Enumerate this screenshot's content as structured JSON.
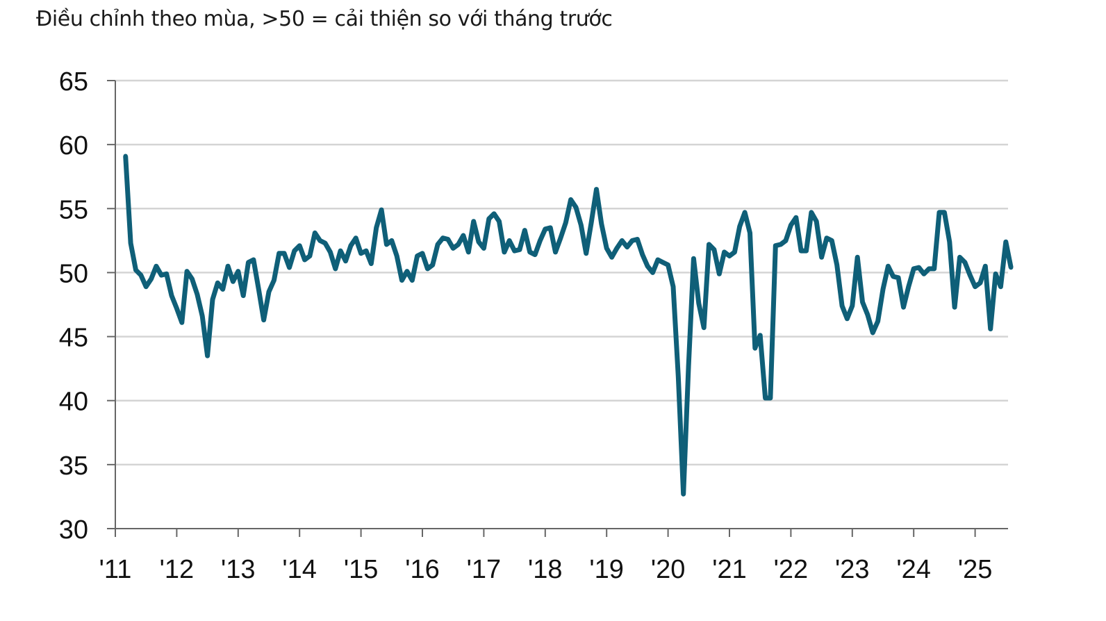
{
  "chart_data": {
    "type": "line",
    "subtitle": "Điều chỉnh theo mùa, >50 = cải thiện so với tháng trước",
    "title": "",
    "xlabel": "",
    "ylabel": "",
    "ylim": [
      30,
      65
    ],
    "y_ticks": [
      "30",
      "35",
      "40",
      "45",
      "50",
      "55",
      "60",
      "65"
    ],
    "x_ticks": [
      "'11",
      "'12",
      "'13",
      "'14",
      "'15",
      "'16",
      "'17",
      "'18",
      "'19",
      "'20",
      "'21",
      "'22",
      "'23",
      "'24",
      "'25"
    ],
    "x_range": [
      "2011-01",
      "2025-07"
    ],
    "grid": true,
    "colors": {
      "line": "#0f5f78",
      "grid": "#d4d4d4",
      "axis": "#666666"
    },
    "series": [
      {
        "name": "",
        "x": [
          "2011-03",
          "2011-04",
          "2011-05",
          "2011-06",
          "2011-07",
          "2011-08",
          "2011-09",
          "2011-10",
          "2011-11",
          "2011-12",
          "2012-01",
          "2012-02",
          "2012-03",
          "2012-04",
          "2012-05",
          "2012-06",
          "2012-07",
          "2012-08",
          "2012-09",
          "2012-10",
          "2012-11",
          "2012-12",
          "2013-01",
          "2013-02",
          "2013-03",
          "2013-04",
          "2013-05",
          "2013-06",
          "2013-07",
          "2013-08",
          "2013-09",
          "2013-10",
          "2013-11",
          "2013-12",
          "2014-01",
          "2014-02",
          "2014-03",
          "2014-04",
          "2014-05",
          "2014-06",
          "2014-07",
          "2014-08",
          "2014-09",
          "2014-10",
          "2014-11",
          "2014-12",
          "2015-01",
          "2015-02",
          "2015-03",
          "2015-04",
          "2015-05",
          "2015-06",
          "2015-07",
          "2015-08",
          "2015-09",
          "2015-10",
          "2015-11",
          "2015-12",
          "2016-01",
          "2016-02",
          "2016-03",
          "2016-04",
          "2016-05",
          "2016-06",
          "2016-07",
          "2016-08",
          "2016-09",
          "2016-10",
          "2016-11",
          "2016-12",
          "2017-01",
          "2017-02",
          "2017-03",
          "2017-04",
          "2017-05",
          "2017-06",
          "2017-07",
          "2017-08",
          "2017-09",
          "2017-10",
          "2017-11",
          "2017-12",
          "2018-01",
          "2018-02",
          "2018-03",
          "2018-04",
          "2018-05",
          "2018-06",
          "2018-07",
          "2018-08",
          "2018-09",
          "2018-10",
          "2018-11",
          "2018-12",
          "2019-01",
          "2019-02",
          "2019-03",
          "2019-04",
          "2019-05",
          "2019-06",
          "2019-07",
          "2019-08",
          "2019-09",
          "2019-10",
          "2019-11",
          "2019-12",
          "2020-01",
          "2020-02",
          "2020-03",
          "2020-04",
          "2020-05",
          "2020-06",
          "2020-07",
          "2020-08",
          "2020-09",
          "2020-10",
          "2020-11",
          "2020-12",
          "2021-01",
          "2021-02",
          "2021-03",
          "2021-04",
          "2021-05",
          "2021-06",
          "2021-07",
          "2021-08",
          "2021-09",
          "2021-10",
          "2021-11",
          "2021-12",
          "2022-01",
          "2022-02",
          "2022-03",
          "2022-04",
          "2022-05",
          "2022-06",
          "2022-07",
          "2022-08",
          "2022-09",
          "2022-10",
          "2022-11",
          "2022-12",
          "2023-01",
          "2023-02",
          "2023-03",
          "2023-04",
          "2023-05",
          "2023-06",
          "2023-07",
          "2023-08",
          "2023-09",
          "2023-10",
          "2023-11",
          "2023-12",
          "2024-01",
          "2024-02",
          "2024-03",
          "2024-04",
          "2024-05",
          "2024-06",
          "2024-07",
          "2024-08",
          "2024-09",
          "2024-10",
          "2024-11",
          "2024-12",
          "2025-01",
          "2025-02",
          "2025-03",
          "2025-04",
          "2025-05",
          "2025-06",
          "2025-07",
          "2025-08"
        ],
        "values": [
          59.1,
          52.3,
          50.2,
          49.8,
          48.9,
          49.5,
          50.5,
          49.8,
          49.9,
          48.2,
          47.2,
          46.1,
          50.1,
          49.5,
          48.3,
          46.6,
          43.5,
          47.9,
          49.2,
          48.7,
          50.5,
          49.3,
          50.1,
          48.2,
          50.8,
          51.0,
          48.7,
          46.3,
          48.5,
          49.4,
          51.5,
          51.5,
          50.4,
          51.7,
          52.1,
          51.0,
          51.3,
          53.1,
          52.5,
          52.3,
          51.6,
          50.3,
          51.7,
          50.9,
          52.1,
          52.7,
          51.5,
          51.7,
          50.7,
          53.5,
          54.9,
          52.2,
          52.5,
          51.3,
          49.4,
          50.1,
          49.4,
          51.3,
          51.5,
          50.3,
          50.6,
          52.2,
          52.7,
          52.6,
          51.9,
          52.2,
          52.9,
          51.6,
          54.0,
          52.4,
          51.9,
          54.2,
          54.6,
          54.0,
          51.6,
          52.5,
          51.7,
          51.8,
          53.3,
          51.6,
          51.4,
          52.5,
          53.4,
          53.5,
          51.6,
          52.7,
          53.9,
          55.7,
          55.1,
          53.7,
          51.5,
          53.9,
          56.5,
          53.8,
          51.9,
          51.2,
          51.9,
          52.5,
          52.0,
          52.5,
          52.6,
          51.4,
          50.5,
          50.0,
          51.0,
          50.8,
          50.6,
          48.9,
          41.9,
          32.7,
          42.7,
          51.1,
          47.6,
          45.7,
          52.2,
          51.8,
          49.9,
          51.6,
          51.3,
          51.6,
          53.6,
          54.7,
          53.1,
          44.1,
          45.1,
          40.2,
          40.2,
          52.1,
          52.2,
          52.5,
          53.7,
          54.3,
          51.7,
          51.7,
          54.7,
          54.0,
          51.2,
          52.7,
          52.5,
          50.6,
          47.4,
          46.4,
          47.4,
          51.2,
          47.7,
          46.7,
          45.3,
          46.2,
          48.7,
          50.5,
          49.7,
          49.6,
          47.3,
          48.9,
          50.3,
          50.4,
          49.9,
          50.3,
          50.3,
          54.7,
          54.7,
          52.4,
          47.3,
          51.2,
          50.8,
          49.8,
          48.9,
          49.2,
          50.5,
          45.6,
          49.9,
          48.9,
          52.4,
          50.4
        ]
      }
    ]
  }
}
